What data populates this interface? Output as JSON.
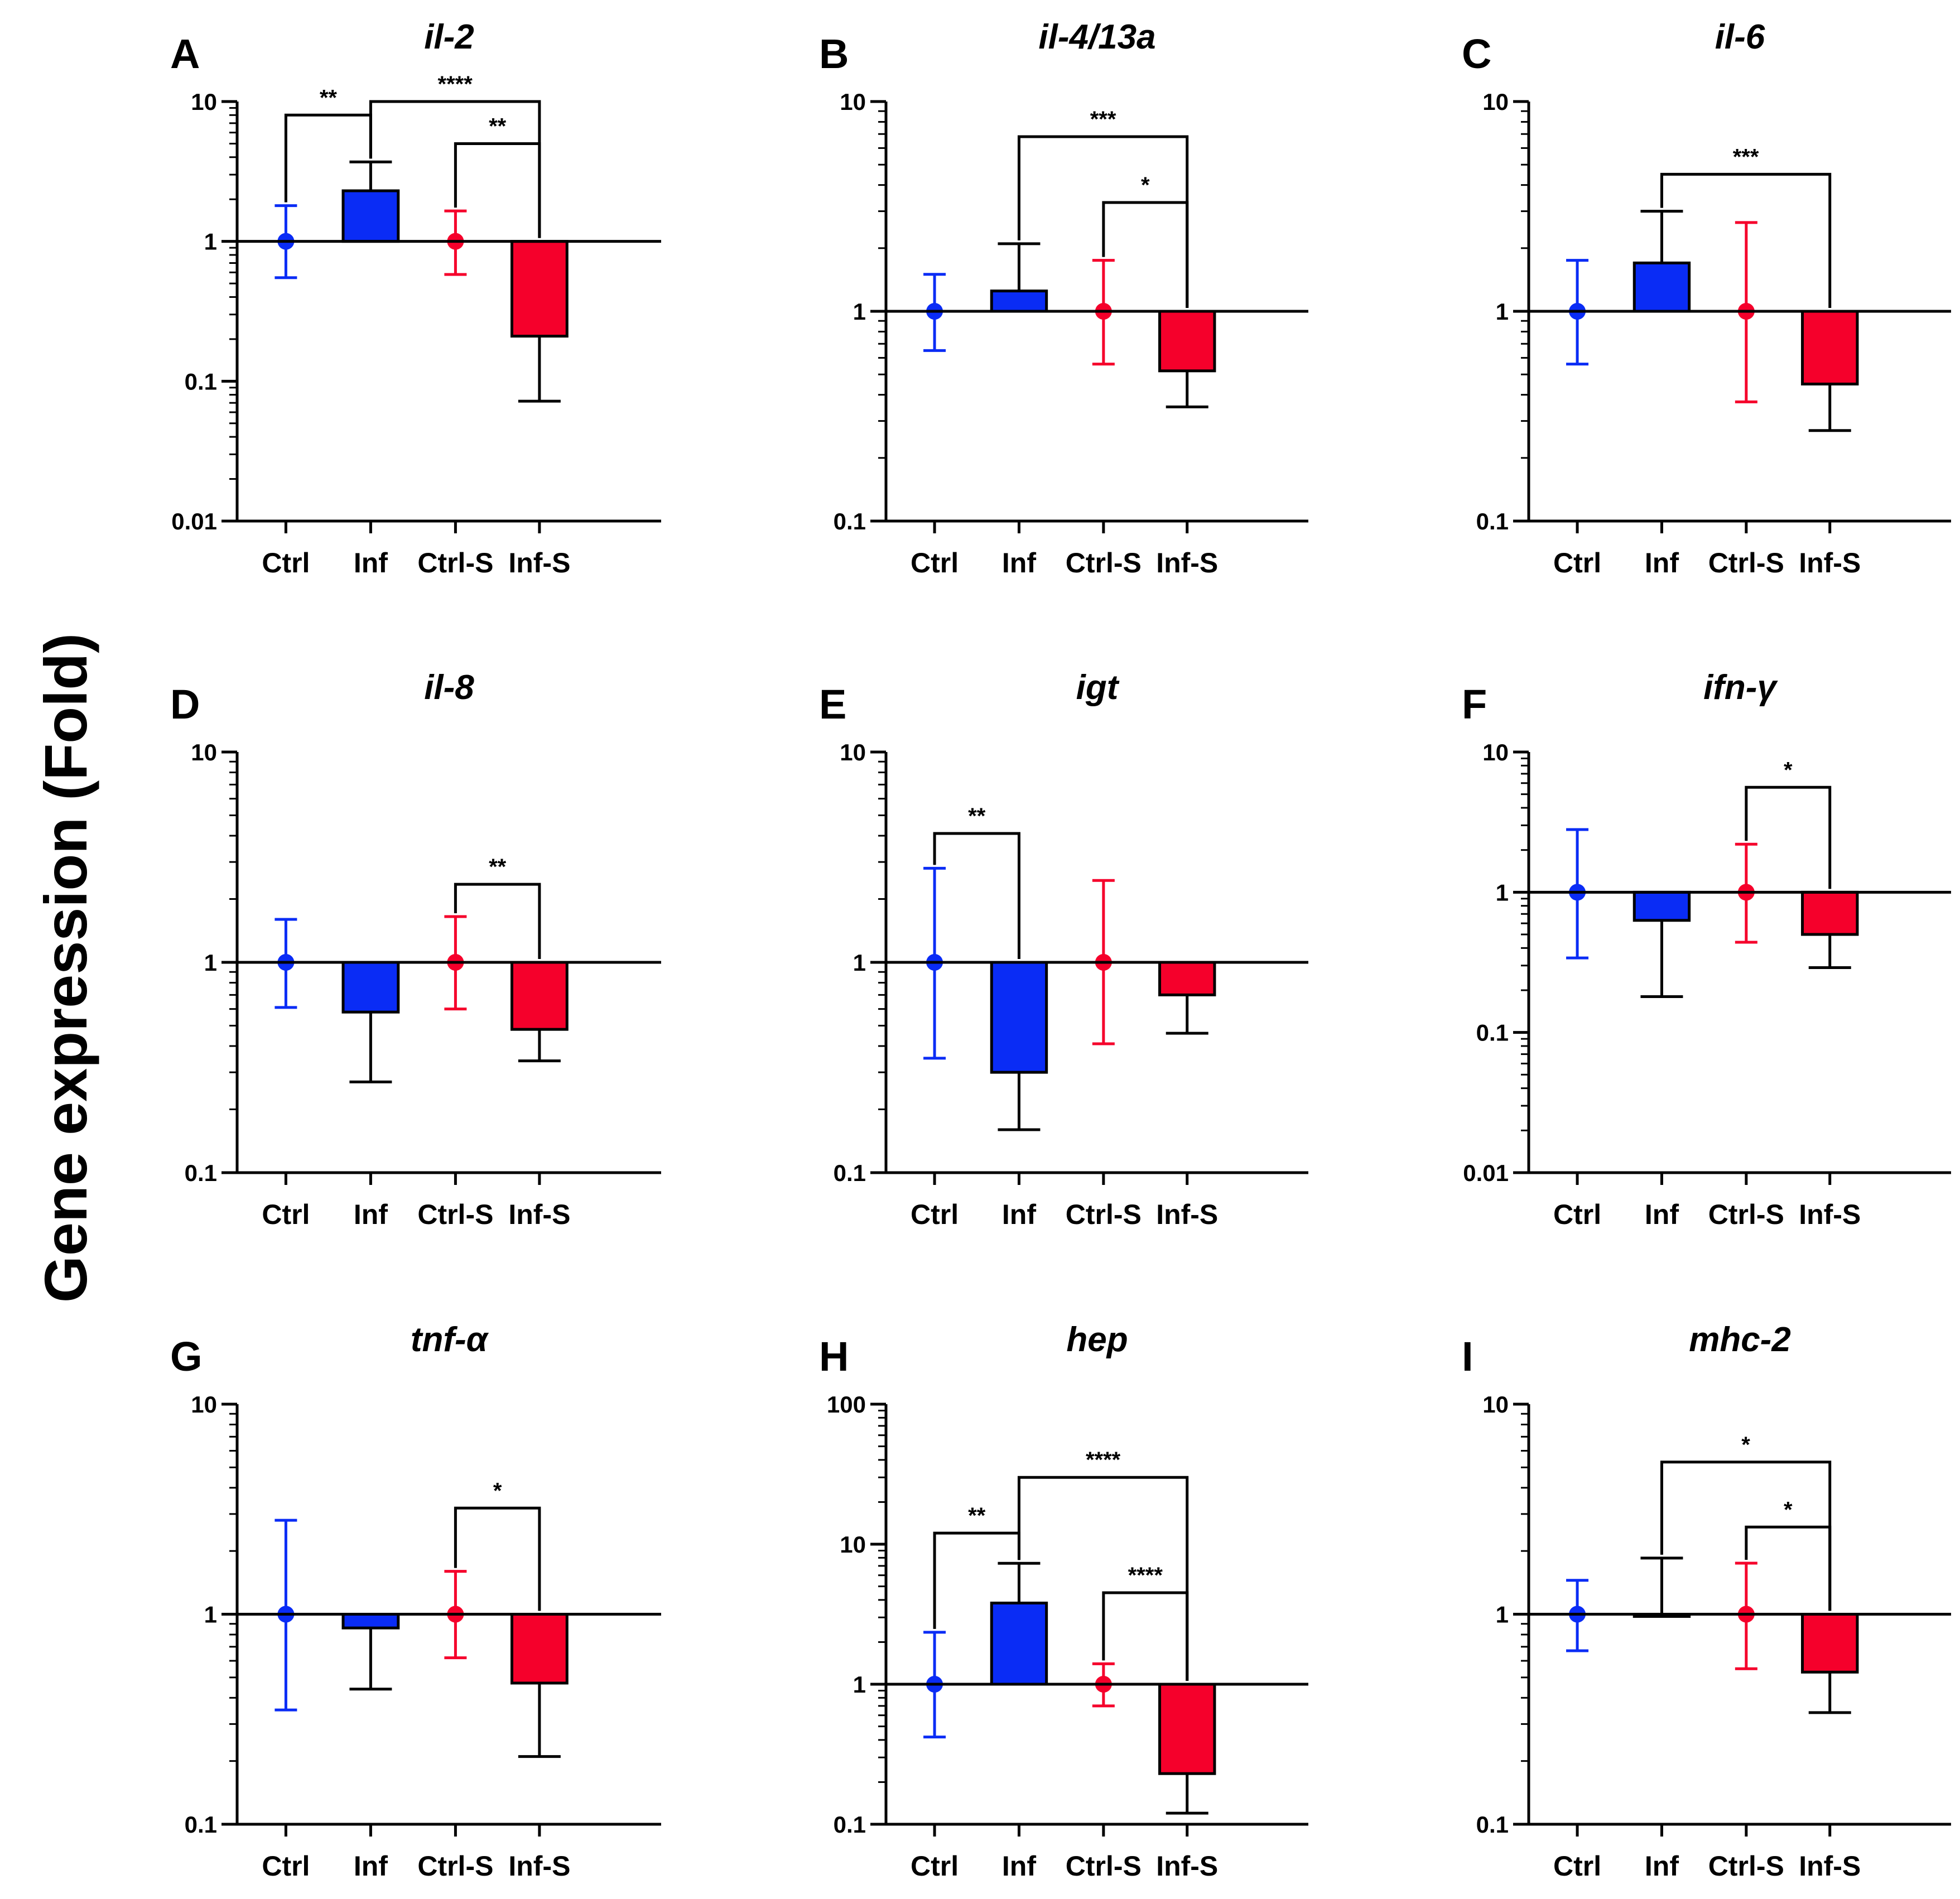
{
  "figure": {
    "ylabel": "Gene expression (Fold)"
  },
  "colors": {
    "blue": "#0a2cf5",
    "red": "#f5002b",
    "axis": "#000000"
  },
  "chart_data": [
    {
      "letter": "A",
      "title": "il-2",
      "type": "bar",
      "yscale": "log",
      "ylim": [
        0.01,
        10
      ],
      "ticks": [
        "10",
        "1",
        "0.1",
        "0.01"
      ],
      "tick_values": [
        10,
        1,
        0.1,
        0.01
      ],
      "categories": [
        "Ctrl",
        "Inf",
        "Ctrl-S",
        "Inf-S"
      ],
      "values": [
        1,
        2.3,
        1,
        0.21
      ],
      "err_low": [
        0.55,
        null,
        0.58,
        0.072
      ],
      "err_high": [
        1.8,
        3.7,
        1.65,
        null
      ],
      "styles": [
        "point",
        "bar",
        "point",
        "bar"
      ],
      "series_colors": [
        "blue",
        "blue",
        "red",
        "red"
      ],
      "significance": [
        {
          "from": 0,
          "to": 1,
          "label": "**",
          "y": 8,
          "level": 1
        },
        {
          "from": 1,
          "to": 3,
          "label": "****",
          "y": 10,
          "level": 2
        },
        {
          "from": 2,
          "to": 3,
          "label": "**",
          "y": 5,
          "level": 1
        }
      ]
    },
    {
      "letter": "B",
      "title": "il-4/13a",
      "type": "bar",
      "yscale": "log",
      "ylim": [
        0.1,
        10
      ],
      "ticks": [
        "10",
        "1",
        "0.1"
      ],
      "tick_values": [
        10,
        1,
        0.1
      ],
      "categories": [
        "Ctrl",
        "Inf",
        "Ctrl-S",
        "Inf-S"
      ],
      "values": [
        1,
        1.25,
        1,
        0.52
      ],
      "err_low": [
        0.65,
        null,
        0.56,
        0.35
      ],
      "err_high": [
        1.5,
        2.1,
        1.75,
        null
      ],
      "styles": [
        "point",
        "bar",
        "point",
        "bar"
      ],
      "series_colors": [
        "blue",
        "blue",
        "red",
        "red"
      ],
      "significance": [
        {
          "from": 1,
          "to": 3,
          "label": "***",
          "y": 6.8,
          "level": 2
        },
        {
          "from": 2,
          "to": 3,
          "label": "*",
          "y": 3.3,
          "level": 1
        }
      ]
    },
    {
      "letter": "C",
      "title": "il-6",
      "type": "bar",
      "yscale": "log",
      "ylim": [
        0.1,
        10
      ],
      "ticks": [
        "10",
        "1",
        "0.1"
      ],
      "tick_values": [
        10,
        1,
        0.1
      ],
      "categories": [
        "Ctrl",
        "Inf",
        "Ctrl-S",
        "Inf-S"
      ],
      "values": [
        1,
        1.7,
        1,
        0.45
      ],
      "err_low": [
        0.56,
        null,
        0.37,
        0.27
      ],
      "err_high": [
        1.75,
        3.0,
        2.65,
        null
      ],
      "styles": [
        "point",
        "bar",
        "point",
        "bar"
      ],
      "series_colors": [
        "blue",
        "blue",
        "red",
        "red"
      ],
      "significance": [
        {
          "from": 1,
          "to": 3,
          "label": "***",
          "y": 4.5,
          "level": 1
        }
      ]
    },
    {
      "letter": "D",
      "title": "il-8",
      "type": "bar",
      "yscale": "log",
      "ylim": [
        0.1,
        10
      ],
      "ticks": [
        "10",
        "1",
        "0.1"
      ],
      "tick_values": [
        10,
        1,
        0.1
      ],
      "categories": [
        "Ctrl",
        "Inf",
        "Ctrl-S",
        "Inf-S"
      ],
      "values": [
        1,
        0.58,
        1,
        0.48
      ],
      "err_low": [
        0.61,
        0.27,
        0.6,
        0.34
      ],
      "err_high": [
        1.6,
        null,
        1.65,
        null
      ],
      "styles": [
        "point",
        "bar",
        "point",
        "bar"
      ],
      "series_colors": [
        "blue",
        "blue",
        "red",
        "red"
      ],
      "significance": [
        {
          "from": 2,
          "to": 3,
          "label": "**",
          "y": 2.35,
          "level": 1
        }
      ]
    },
    {
      "letter": "E",
      "title": "igt",
      "type": "bar",
      "yscale": "log",
      "ylim": [
        0.1,
        10
      ],
      "ticks": [
        "10",
        "1",
        "0.1"
      ],
      "tick_values": [
        10,
        1,
        0.1
      ],
      "categories": [
        "Ctrl",
        "Inf",
        "Ctrl-S",
        "Inf-S"
      ],
      "values": [
        1,
        0.3,
        1,
        0.7
      ],
      "err_low": [
        0.35,
        0.16,
        0.41,
        0.46
      ],
      "err_high": [
        2.8,
        null,
        2.45,
        null
      ],
      "styles": [
        "point",
        "bar",
        "point",
        "bar"
      ],
      "series_colors": [
        "blue",
        "blue",
        "red",
        "red"
      ],
      "significance": [
        {
          "from": 0,
          "to": 1,
          "label": "**",
          "y": 4.1,
          "level": 1
        }
      ]
    },
    {
      "letter": "F",
      "title": "ifn-γ",
      "type": "bar",
      "yscale": "log",
      "ylim": [
        0.01,
        10
      ],
      "ticks": [
        "10",
        "1",
        "0.1",
        "0.01"
      ],
      "tick_values": [
        10,
        1,
        0.1,
        0.01
      ],
      "categories": [
        "Ctrl",
        "Inf",
        "Ctrl-S",
        "Inf-S"
      ],
      "values": [
        1,
        0.63,
        1,
        0.5
      ],
      "err_low": [
        0.34,
        0.18,
        0.44,
        0.29
      ],
      "err_high": [
        2.8,
        null,
        2.2,
        null
      ],
      "styles": [
        "point",
        "bar",
        "point",
        "bar"
      ],
      "series_colors": [
        "blue",
        "blue",
        "red",
        "red"
      ],
      "significance": [
        {
          "from": 2,
          "to": 3,
          "label": "*",
          "y": 5.6,
          "level": 1
        }
      ]
    },
    {
      "letter": "G",
      "title": "tnf-α",
      "type": "bar",
      "yscale": "log",
      "ylim": [
        0.1,
        10
      ],
      "ticks": [
        "10",
        "1",
        "0.1"
      ],
      "tick_values": [
        10,
        1,
        0.1
      ],
      "categories": [
        "Ctrl",
        "Inf",
        "Ctrl-S",
        "Inf-S"
      ],
      "values": [
        1,
        0.86,
        1,
        0.47
      ],
      "err_low": [
        0.35,
        0.44,
        0.62,
        0.21
      ],
      "err_high": [
        2.8,
        null,
        1.6,
        null
      ],
      "styles": [
        "point",
        "bar",
        "point",
        "bar"
      ],
      "series_colors": [
        "blue",
        "blue",
        "red",
        "red"
      ],
      "significance": [
        {
          "from": 2,
          "to": 3,
          "label": "*",
          "y": 3.2,
          "level": 1
        }
      ]
    },
    {
      "letter": "H",
      "title": "hep",
      "type": "bar",
      "yscale": "log",
      "ylim": [
        0.1,
        100
      ],
      "ticks": [
        "100",
        "10",
        "1",
        "0.1"
      ],
      "tick_values": [
        100,
        10,
        1,
        0.1
      ],
      "categories": [
        "Ctrl",
        "Inf",
        "Ctrl-S",
        "Inf-S"
      ],
      "values": [
        1,
        3.8,
        1,
        0.23
      ],
      "err_low": [
        0.42,
        null,
        0.7,
        0.12
      ],
      "err_high": [
        2.35,
        7.3,
        1.4,
        null
      ],
      "styles": [
        "point",
        "bar",
        "point",
        "bar"
      ],
      "series_colors": [
        "blue",
        "blue",
        "red",
        "red"
      ],
      "significance": [
        {
          "from": 0,
          "to": 1,
          "label": "**",
          "y": 12,
          "level": 1
        },
        {
          "from": 1,
          "to": 3,
          "label": "****",
          "y": 30,
          "level": 2
        },
        {
          "from": 2,
          "to": 3,
          "label": "****",
          "y": 4.5,
          "level": 1
        }
      ]
    },
    {
      "letter": "I",
      "title": "mhc-2",
      "type": "bar",
      "yscale": "log",
      "ylim": [
        0.1,
        10
      ],
      "ticks": [
        "10",
        "1",
        "0.1"
      ],
      "tick_values": [
        10,
        1,
        0.1
      ],
      "categories": [
        "Ctrl",
        "Inf",
        "Ctrl-S",
        "Inf-S"
      ],
      "values": [
        1,
        1,
        1,
        0.53
      ],
      "err_low": [
        0.67,
        null,
        0.55,
        0.34
      ],
      "err_high": [
        1.45,
        1.85,
        1.75,
        null
      ],
      "styles": [
        "point",
        "bar",
        "point",
        "bar"
      ],
      "series_colors": [
        "blue",
        "blue",
        "red",
        "red"
      ],
      "significance": [
        {
          "from": 1,
          "to": 3,
          "label": "*",
          "y": 5.3,
          "level": 2
        },
        {
          "from": 2,
          "to": 3,
          "label": "*",
          "y": 2.6,
          "level": 1
        }
      ]
    }
  ]
}
